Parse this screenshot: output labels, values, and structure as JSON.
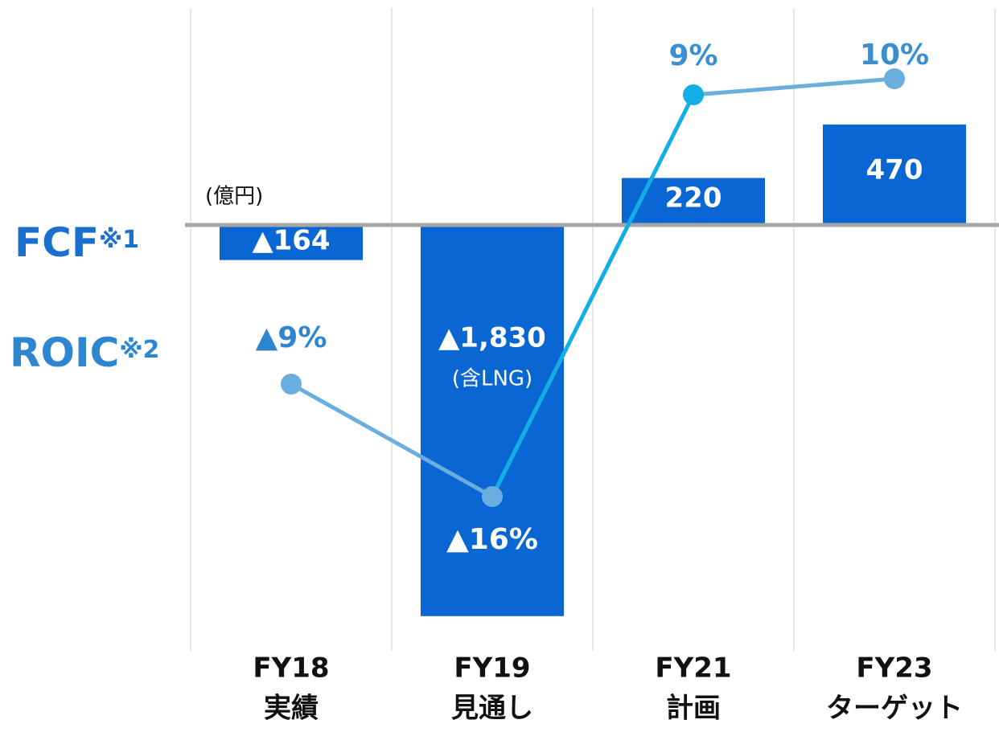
{
  "chart_data": {
    "type": "bar_line",
    "unit_label": "(億円)",
    "categories": [
      [
        "FY18",
        "実績"
      ],
      [
        "FY19",
        "見通し"
      ],
      [
        "FY21",
        "計画"
      ],
      [
        "FY23",
        "ターゲット"
      ]
    ],
    "series": [
      {
        "name": "FCF",
        "note": "※1",
        "type": "bar",
        "color": "#0a66d2",
        "values": [
          -164,
          -1830,
          220,
          470
        ],
        "value_labels": [
          "▲164",
          "▲1,830",
          "220",
          "470"
        ]
      },
      {
        "name": "ROIC",
        "note": "※2",
        "type": "line",
        "color": "#6aaee0",
        "segment_colors": [
          "#6aaee0",
          "#14aee6",
          "#6aaee0"
        ],
        "marker_colors": [
          "#6aaee0",
          "#6aaee0",
          "#14aee6",
          "#6aaee0"
        ],
        "values": [
          -9,
          -16,
          9,
          10
        ],
        "value_labels": [
          "▲9%",
          "▲16%",
          "9%",
          "10%"
        ]
      }
    ],
    "annotations": [
      {
        "category": 1,
        "text": "(含LNG)"
      }
    ],
    "grid": true
  }
}
